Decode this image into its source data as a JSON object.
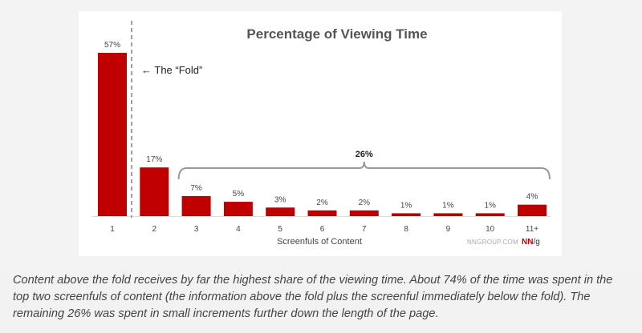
{
  "chart_data": {
    "type": "bar",
    "title": "Percentage of Viewing Time",
    "xlabel": "Screenfuls of Content",
    "ylabel": "",
    "categories": [
      "1",
      "2",
      "3",
      "4",
      "5",
      "6",
      "7",
      "8",
      "9",
      "10",
      "11+"
    ],
    "values": [
      57,
      17,
      7,
      5,
      3,
      2,
      2,
      1,
      1,
      1,
      4
    ],
    "value_labels": [
      "57%",
      "17%",
      "7%",
      "5%",
      "3%",
      "2%",
      "2%",
      "1%",
      "1%",
      "1%",
      "4%"
    ],
    "ylim": [
      0,
      57
    ],
    "grid": false,
    "legend": "none",
    "annotations": {
      "fold_label": "← The “Fold”",
      "bracket_label": "26%",
      "source_text": "NNGROUP.COM",
      "logo_text": "NN/g"
    },
    "colors": {
      "bar": "#c00000",
      "logo_red": "#c00000",
      "axis": "#dddddd",
      "text": "#444444"
    }
  },
  "caption": {
    "text": "Content above the fold receives by far the highest share of the viewing time. About 74% of the time was spent in the top two screenfuls of content (the information above the fold plus the screenful immediately below the fold). The remaining 26% was spent in small increments further down the length of the page."
  }
}
